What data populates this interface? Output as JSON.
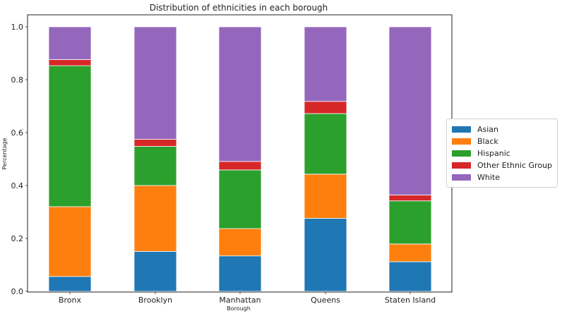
{
  "chart_data": {
    "type": "bar",
    "stacked": true,
    "title": "Distribution of ethnicities in each borough",
    "xlabel": "Borough",
    "ylabel": "Percentage",
    "ylim": [
      0,
      1.0
    ],
    "yticks": [
      "0.0",
      "0.2",
      "0.4",
      "0.6",
      "0.8",
      "1.0"
    ],
    "categories": [
      "Bronx",
      "Brooklyn",
      "Manhattan",
      "Queens",
      "Staten Island"
    ],
    "series": [
      {
        "name": "Asian",
        "color": "#1f77b4",
        "values": [
          0.056,
          0.151,
          0.134,
          0.276,
          0.112
        ]
      },
      {
        "name": "Black",
        "color": "#ff7f0e",
        "values": [
          0.264,
          0.249,
          0.103,
          0.167,
          0.067
        ]
      },
      {
        "name": "Hispanic",
        "color": "#2ca02c",
        "values": [
          0.533,
          0.148,
          0.222,
          0.229,
          0.163
        ]
      },
      {
        "name": "Other Ethnic Group",
        "color": "#d62728",
        "values": [
          0.023,
          0.027,
          0.032,
          0.046,
          0.022
        ]
      },
      {
        "name": "White",
        "color": "#9467bd",
        "values": [
          0.124,
          0.425,
          0.509,
          0.282,
          0.636
        ]
      }
    ],
    "grid": false,
    "legend_position": "right"
  }
}
